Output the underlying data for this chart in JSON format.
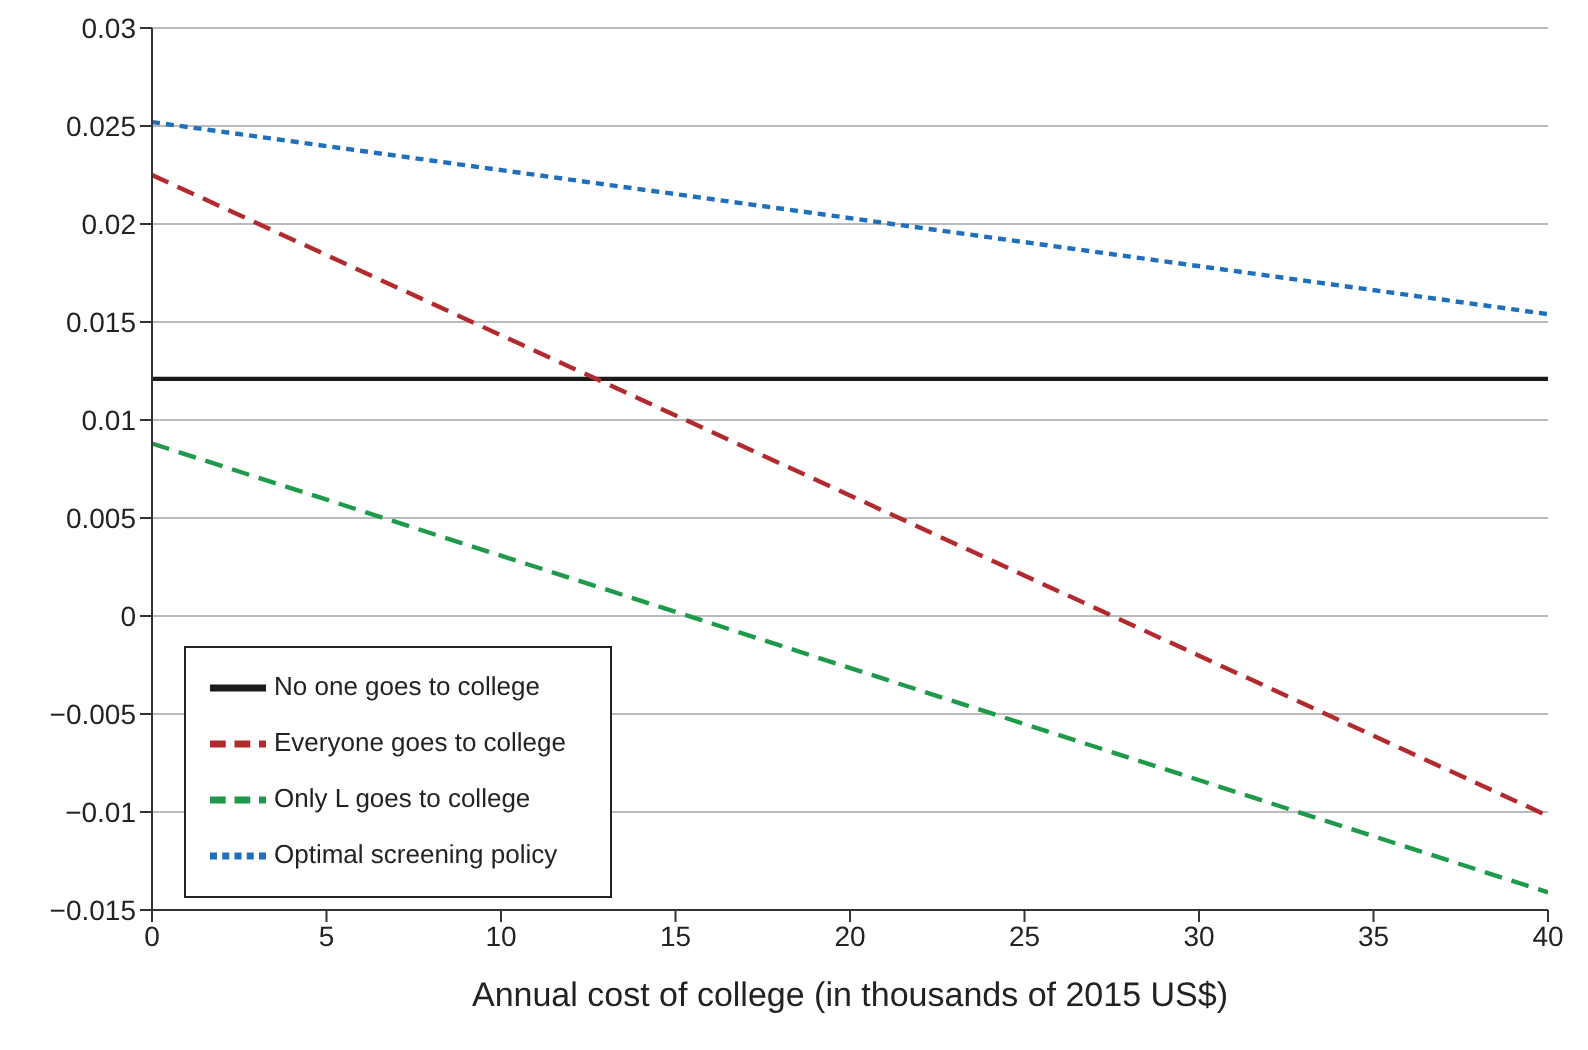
{
  "chart_data": {
    "type": "line",
    "xlabel": "Annual cost of college (in thousands of 2015 US$)",
    "x": [
      0,
      40
    ],
    "series": [
      {
        "name": "No one goes to college",
        "color": "#1a1a1a",
        "values": [
          0.0121,
          0.0121
        ],
        "line_style": "solid"
      },
      {
        "name": "Everyone goes to college",
        "color": "#b22a2e",
        "values": [
          0.0225,
          -0.0102
        ],
        "line_style": "dashed"
      },
      {
        "name": "Only L goes to college",
        "color": "#1e9a4a",
        "values": [
          0.0088,
          -0.0141
        ],
        "line_style": "dashed"
      },
      {
        "name": "Optimal screening policy",
        "color": "#1f6fba",
        "values": [
          0.0252,
          0.0154
        ],
        "line_style": "dotted"
      }
    ],
    "xlim": [
      0,
      40
    ],
    "xticks": [
      0,
      5,
      10,
      15,
      20,
      25,
      30,
      35,
      40
    ],
    "ylim": [
      -0.015,
      0.03
    ],
    "yticks": [
      {
        "value": -0.015,
        "label": "−0.015"
      },
      {
        "value": -0.01,
        "label": "−0.01"
      },
      {
        "value": -0.005,
        "label": "−0.005"
      },
      0,
      0.005,
      0.01,
      0.015,
      0.02,
      0.025,
      0.03
    ],
    "grid": "y",
    "legend": "bottom left",
    "marker": "none"
  }
}
